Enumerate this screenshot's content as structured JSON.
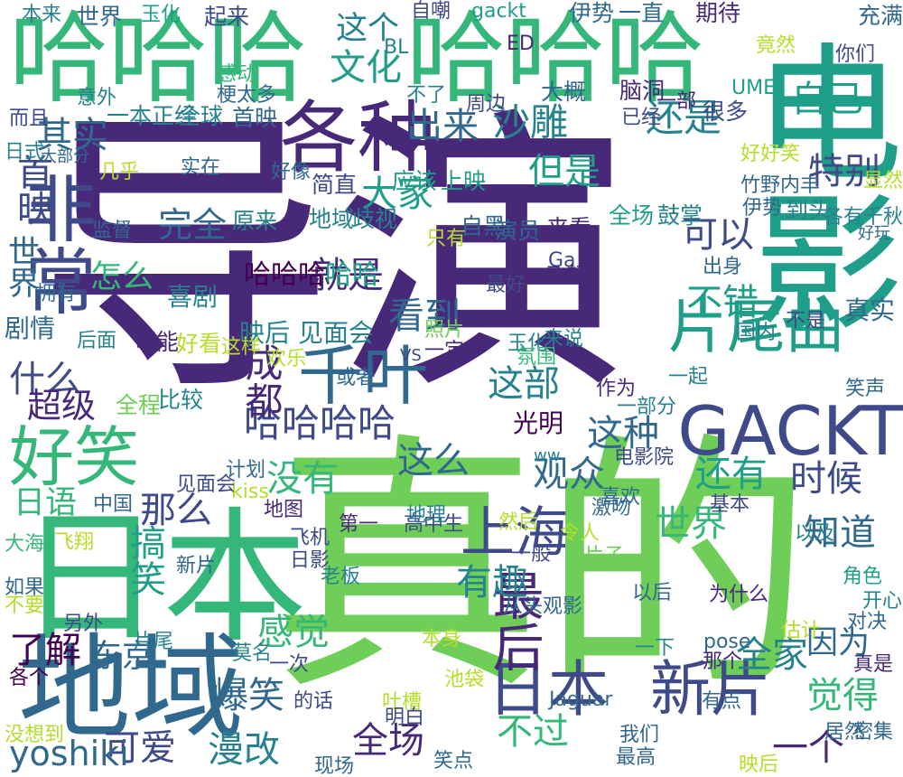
{
  "colors": {
    "background": "#ffffff",
    "palette": [
      "#440154",
      "#482878",
      "#3e4a89",
      "#31688e",
      "#26828e",
      "#1f9e89",
      "#35b779",
      "#6ece58",
      "#b5de2b",
      "#fde725"
    ]
  },
  "words": [
    {
      "text": "导演",
      "color": "#482878"
    },
    {
      "text": "真的",
      "color": "#6ece58"
    },
    {
      "text": "电影",
      "color": "#1f9e89"
    },
    {
      "text": "日本",
      "color": "#35b779"
    },
    {
      "text": "哈哈哈",
      "color": "#35b779"
    },
    {
      "text": "哈哈哈",
      "color": "#35b779"
    },
    {
      "text": "地域",
      "color": "#31688e"
    },
    {
      "text": "各种",
      "color": "#482878"
    },
    {
      "text": "非常",
      "color": "#3e4a89"
    },
    {
      "text": "GACKT",
      "color": "#3e4a89"
    },
    {
      "text": "片尾曲",
      "color": "#1f9e89"
    },
    {
      "text": "千叶",
      "color": "#31688e"
    },
    {
      "text": "好笑",
      "color": "#35b779"
    },
    {
      "text": "日本",
      "color": "#3e4a89"
    },
    {
      "text": "新片",
      "color": "#3e4a89"
    },
    {
      "text": "上海",
      "color": "#3e4a89"
    },
    {
      "text": "最后",
      "color": "#482878"
    },
    {
      "text": "哈哈哈哈",
      "color": "#3e4a89"
    },
    {
      "text": "自己",
      "color": "#1f9e89"
    },
    {
      "text": "文化",
      "color": "#1f9e89"
    },
    {
      "text": "这个",
      "color": "#26828e"
    },
    {
      "text": "出来",
      "color": "#31688e"
    },
    {
      "text": "沙雕",
      "color": "#26828e"
    },
    {
      "text": "还是",
      "color": "#26828e"
    },
    {
      "text": "大家",
      "color": "#1f9e89"
    },
    {
      "text": "就是",
      "color": "#482878"
    },
    {
      "text": "看到",
      "color": "#31688e"
    },
    {
      "text": "其实",
      "color": "#31688e"
    },
    {
      "text": "首映",
      "color": "#3e4a89"
    },
    {
      "text": "特别",
      "color": "#3e4a89"
    },
    {
      "text": "但是",
      "color": "#1f9e89"
    },
    {
      "text": "可以",
      "color": "#3e4a89"
    },
    {
      "text": "完全",
      "color": "#31688e"
    },
    {
      "text": "世界",
      "color": "#31688e"
    },
    {
      "text": "怎么",
      "color": "#35b779"
    },
    {
      "text": "不错",
      "color": "#1f9e89"
    },
    {
      "text": "什么",
      "color": "#3e4a89"
    },
    {
      "text": "超级",
      "color": "#482878"
    },
    {
      "text": "成都",
      "color": "#482878"
    },
    {
      "text": "这部",
      "color": "#26828e"
    },
    {
      "text": "这种",
      "color": "#31688e"
    },
    {
      "text": "这么",
      "color": "#31688e"
    },
    {
      "text": "没有",
      "color": "#35b779"
    },
    {
      "text": "观众",
      "color": "#31688e"
    },
    {
      "text": "还有",
      "color": "#1f9e89"
    },
    {
      "text": "时候",
      "color": "#3e4a89"
    },
    {
      "text": "那么",
      "color": "#3e4a89"
    },
    {
      "text": "世界",
      "color": "#35b779"
    },
    {
      "text": "知道",
      "color": "#31688e"
    },
    {
      "text": "日语",
      "color": "#35b779"
    },
    {
      "text": "搞笑",
      "color": "#1f9e89"
    },
    {
      "text": "有趣",
      "color": "#26828e"
    },
    {
      "text": "感觉",
      "color": "#35b779"
    },
    {
      "text": "了解",
      "color": "#440154"
    },
    {
      "text": "东京",
      "color": "#31688e"
    },
    {
      "text": "全家",
      "color": "#26828e"
    },
    {
      "text": "因为",
      "color": "#31688e"
    },
    {
      "text": "觉得",
      "color": "#35b779"
    },
    {
      "text": "不过",
      "color": "#35b779"
    },
    {
      "text": "爆笑",
      "color": "#31688e"
    },
    {
      "text": "全场",
      "color": "#482878"
    },
    {
      "text": "可爱",
      "color": "#3e4a89"
    },
    {
      "text": "漫改",
      "color": "#26828e"
    },
    {
      "text": "一个",
      "color": "#482878"
    },
    {
      "text": "yoshiki",
      "color": "#31688e"
    },
    {
      "text": "哈哈哈",
      "color": "#440154"
    },
    {
      "text": "哈哈",
      "color": "#1f9e89"
    },
    {
      "text": "喜剧",
      "color": "#26828e"
    },
    {
      "text": "剧情",
      "color": "#31688e"
    },
    {
      "text": "真实",
      "color": "#31688e"
    },
    {
      "text": "映后",
      "color": "#26828e"
    },
    {
      "text": "见面会",
      "color": "#26828e"
    },
    {
      "text": "光明",
      "color": "#440154"
    },
    {
      "text": "全程",
      "color": "#6ece58"
    },
    {
      "text": "比较",
      "color": "#26828e"
    },
    {
      "text": "可能",
      "color": "#482878"
    },
    {
      "text": "好看",
      "color": "#b5de2b"
    },
    {
      "text": "原来",
      "color": "#26828e"
    },
    {
      "text": "简直",
      "color": "#3e4a89"
    },
    {
      "text": "应该",
      "color": "#1f9e89"
    },
    {
      "text": "上映",
      "color": "#1f9e89"
    },
    {
      "text": "地域",
      "color": "#26828e"
    },
    {
      "text": "歧视",
      "color": "#26828e"
    },
    {
      "text": "自黑",
      "color": "#31688e"
    },
    {
      "text": "演员",
      "color": "#31688e"
    },
    {
      "text": "来看",
      "color": "#482878"
    },
    {
      "text": "全场",
      "color": "#1f9e89"
    },
    {
      "text": "鼓掌",
      "color": "#26828e"
    },
    {
      "text": "到头",
      "color": "#26828e"
    },
    {
      "text": "首映",
      "color": "#31688e"
    },
    {
      "text": "全球",
      "color": "#26828e"
    },
    {
      "text": "一本正经",
      "color": "#26828e"
    },
    {
      "text": "梗太多",
      "color": "#31688e"
    },
    {
      "text": "意外",
      "color": "#26828e"
    },
    {
      "text": "感动",
      "color": "#35b779"
    },
    {
      "text": "大概",
      "color": "#31688e"
    },
    {
      "text": "脑洞",
      "color": "#482878"
    },
    {
      "text": "一部",
      "color": "#482878"
    },
    {
      "text": "已经",
      "color": "#3e4a89"
    },
    {
      "text": "很多",
      "color": "#3e4a89"
    },
    {
      "text": "期待",
      "color": "#482878"
    },
    {
      "text": "一直",
      "color": "#31688e"
    },
    {
      "text": "伊势",
      "color": "#31688e"
    },
    {
      "text": "gackt",
      "color": "#1f9e89"
    },
    {
      "text": "自嘲",
      "color": "#3e4a89"
    },
    {
      "text": "起来",
      "color": "#3e4a89"
    },
    {
      "text": "玉化",
      "color": "#1f9e89"
    },
    {
      "text": "世界",
      "color": "#31688e"
    },
    {
      "text": "本来",
      "color": "#26828e"
    },
    {
      "text": "BL",
      "color": "#26828e"
    },
    {
      "text": "ED",
      "color": "#482878"
    },
    {
      "text": "UME",
      "color": "#1f9e89"
    },
    {
      "text": "竟然",
      "color": "#b5de2b"
    },
    {
      "text": "你们",
      "color": "#3e4a89"
    },
    {
      "text": "充满",
      "color": "#31688e"
    },
    {
      "text": "而且",
      "color": "#3e4a89"
    },
    {
      "text": "日式",
      "color": "#26828e"
    },
    {
      "text": "大部分",
      "color": "#31688e"
    },
    {
      "text": "实在",
      "color": "#31688e"
    },
    {
      "text": "好好笑",
      "color": "#b5de2b"
    },
    {
      "text": "竹野内丰",
      "color": "#31688e"
    },
    {
      "text": "伊势",
      "color": "#31688e"
    },
    {
      "text": "监督",
      "color": "#31688e"
    },
    {
      "text": "拥有",
      "color": "#31688e"
    },
    {
      "text": "Ga",
      "color": "#3e4a89"
    },
    {
      "text": "照片",
      "color": "#6ece58"
    },
    {
      "text": "飞起",
      "color": "#482878"
    },
    {
      "text": "最好",
      "color": "#3e4a89"
    },
    {
      "text": "出身",
      "color": "#31688e"
    },
    {
      "text": "国内",
      "color": "#26828e"
    },
    {
      "text": "不是",
      "color": "#3e4a89"
    },
    {
      "text": "一定",
      "color": "#482878"
    },
    {
      "text": "玉化",
      "color": "#26828e"
    },
    {
      "text": "氛围",
      "color": "#35b779"
    },
    {
      "text": "来说",
      "color": "#26828e"
    },
    {
      "text": "欢乐",
      "color": "#b5de2b"
    },
    {
      "text": "或者",
      "color": "#31688e"
    },
    {
      "text": "作为",
      "color": "#482878"
    },
    {
      "text": "一起",
      "color": "#26828e"
    },
    {
      "text": "一部分",
      "color": "#26828e"
    },
    {
      "text": "笑声",
      "color": "#31688e"
    },
    {
      "text": "电影院",
      "color": "#3e4a89"
    },
    {
      "text": "计划",
      "color": "#31688e"
    },
    {
      "text": "kiss",
      "color": "#b5de2b"
    },
    {
      "text": "见面会",
      "color": "#3e4a89"
    },
    {
      "text": "中国",
      "color": "#31688e"
    },
    {
      "text": "地图",
      "color": "#482878"
    },
    {
      "text": "第一",
      "color": "#482878"
    },
    {
      "text": "高中生",
      "color": "#3e4a89"
    },
    {
      "text": "然后",
      "color": "#b5de2b"
    },
    {
      "text": "激吻",
      "color": "#31688e"
    },
    {
      "text": "基本",
      "color": "#3e4a89"
    },
    {
      "text": "一般",
      "color": "#3e4a89"
    },
    {
      "text": "片子",
      "color": "#6ece58"
    },
    {
      "text": "以及",
      "color": "#26828e"
    },
    {
      "text": "角色",
      "color": "#1f9e89"
    },
    {
      "text": "开心",
      "color": "#26828e"
    },
    {
      "text": "新片",
      "color": "#31688e"
    },
    {
      "text": "日影",
      "color": "#3e4a89"
    },
    {
      "text": "飞机",
      "color": "#3e4a89"
    },
    {
      "text": "老板",
      "color": "#26828e"
    },
    {
      "text": "飞翔",
      "color": "#b5de2b"
    },
    {
      "text": "大海",
      "color": "#35b779"
    },
    {
      "text": "如果",
      "color": "#31688e"
    },
    {
      "text": "不要",
      "color": "#b5de2b"
    },
    {
      "text": "另外",
      "color": "#3e4a89"
    },
    {
      "text": "从头观影",
      "color": "#31688e"
    },
    {
      "text": "为什么",
      "color": "#482878"
    },
    {
      "text": "以后",
      "color": "#31688e"
    },
    {
      "text": "估计",
      "color": "#b5de2b"
    },
    {
      "text": "对决",
      "color": "#31688e"
    },
    {
      "text": "pose",
      "color": "#31688e"
    },
    {
      "text": "片尾",
      "color": "#26828e"
    },
    {
      "text": "莫名",
      "color": "#26828e"
    },
    {
      "text": "一次",
      "color": "#3e4a89"
    },
    {
      "text": "本身",
      "color": "#b5de2b"
    },
    {
      "text": "一下",
      "color": "#26828e"
    },
    {
      "text": "那个",
      "color": "#482878"
    },
    {
      "text": "真是",
      "color": "#482878"
    },
    {
      "text": "池袋",
      "color": "#b5de2b"
    },
    {
      "text": "各个",
      "color": "#440154"
    },
    {
      "text": "的话",
      "color": "#3e4a89"
    },
    {
      "text": "吐槽",
      "color": "#b5de2b"
    },
    {
      "text": "Jaguar",
      "color": "#31688e"
    },
    {
      "text": "有点",
      "color": "#31688e"
    },
    {
      "text": "明白",
      "color": "#3e4a89"
    },
    {
      "text": "我们",
      "color": "#31688e"
    },
    {
      "text": "最高",
      "color": "#31688e"
    },
    {
      "text": "居然",
      "color": "#31688e"
    },
    {
      "text": "密集",
      "color": "#31688e"
    },
    {
      "text": "没想到",
      "color": "#b5de2b"
    },
    {
      "text": "现场",
      "color": "#31688e"
    },
    {
      "text": "笑点",
      "color": "#31688e"
    },
    {
      "text": "映后",
      "color": "#b5de2b"
    },
    {
      "text": "ww",
      "color": "#26828e"
    },
    {
      "text": "VS",
      "color": "#3e4a89"
    },
    {
      "text": "只有",
      "color": "#b5de2b"
    },
    {
      "text": "几乎",
      "color": "#b5de2b"
    },
    {
      "text": "好像",
      "color": "#31688e"
    },
    {
      "text": "后面",
      "color": "#26828e"
    },
    {
      "text": "这样",
      "color": "#b5de2b"
    },
    {
      "text": "地理",
      "color": "#26828e"
    },
    {
      "text": "令人",
      "color": "#b5de2b"
    },
    {
      "text": "喜欢",
      "color": "#31688e"
    },
    {
      "text": "显然",
      "color": "#b5de2b"
    },
    {
      "text": "各有千秋",
      "color": "#26828e"
    },
    {
      "text": "好玩",
      "color": "#31688e"
    },
    {
      "text": "不了",
      "color": "#26828e"
    },
    {
      "text": "周边",
      "color": "#3e4a89"
    }
  ]
}
